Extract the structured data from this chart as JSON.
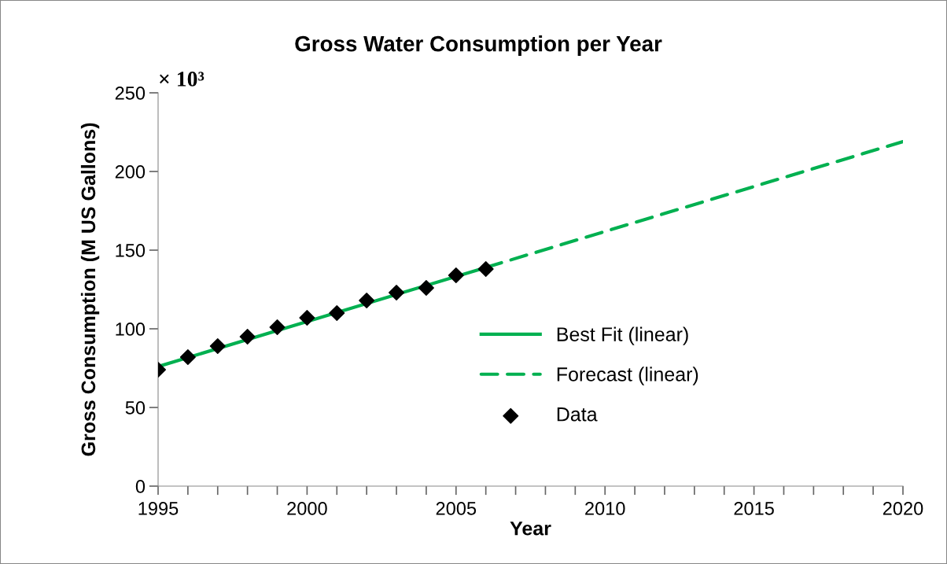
{
  "chart_data": {
    "type": "line",
    "title": "Gross Water Consumption per Year",
    "xlabel": "Year",
    "ylabel": "Gross Consumption (M US Gallons)",
    "annotations": [
      "× 10³"
    ],
    "series": [
      {
        "name": "Best Fit (linear)",
        "color": "#00b050",
        "line_style": "solid",
        "marker": "none",
        "x": [
          1995,
          2006
        ],
        "values": [
          76,
          139
        ]
      },
      {
        "name": "Forecast (linear)",
        "color": "#00b050",
        "line_style": "dashed",
        "marker": "none",
        "x": [
          2006,
          2020
        ],
        "values": [
          139,
          219
        ]
      },
      {
        "name": "Data",
        "type": "scatter",
        "color": "#000000",
        "marker": "diamond",
        "x": [
          1995,
          1996,
          1997,
          1998,
          1999,
          2000,
          2001,
          2002,
          2003,
          2004,
          2005,
          2006
        ],
        "values": [
          74,
          82,
          89,
          95,
          101,
          107,
          110,
          118,
          123,
          126,
          134,
          138
        ]
      }
    ],
    "xlim": [
      1995,
      2020
    ],
    "ylim": [
      0,
      250
    ],
    "xticks": [
      1995,
      {
        "value": 1996,
        "label": null
      },
      {
        "value": 1997,
        "label": null
      },
      {
        "value": 1998,
        "label": null
      },
      {
        "value": 1999,
        "label": null
      },
      2000,
      {
        "value": 2001,
        "label": null
      },
      {
        "value": 2002,
        "label": null
      },
      {
        "value": 2003,
        "label": null
      },
      {
        "value": 2004,
        "label": null
      },
      2005,
      {
        "value": 2006,
        "label": null
      },
      {
        "value": 2007,
        "label": null
      },
      {
        "value": 2008,
        "label": null
      },
      {
        "value": 2009,
        "label": null
      },
      2010,
      {
        "value": 2011,
        "label": null
      },
      {
        "value": 2012,
        "label": null
      },
      {
        "value": 2013,
        "label": null
      },
      {
        "value": 2014,
        "label": null
      },
      2015,
      {
        "value": 2016,
        "label": null
      },
      {
        "value": 2017,
        "label": null
      },
      {
        "value": 2018,
        "label": null
      },
      {
        "value": 2019,
        "label": null
      },
      2020
    ],
    "yticks": [
      0,
      50,
      100,
      150,
      200,
      250
    ],
    "grid": false,
    "legend": "right"
  }
}
